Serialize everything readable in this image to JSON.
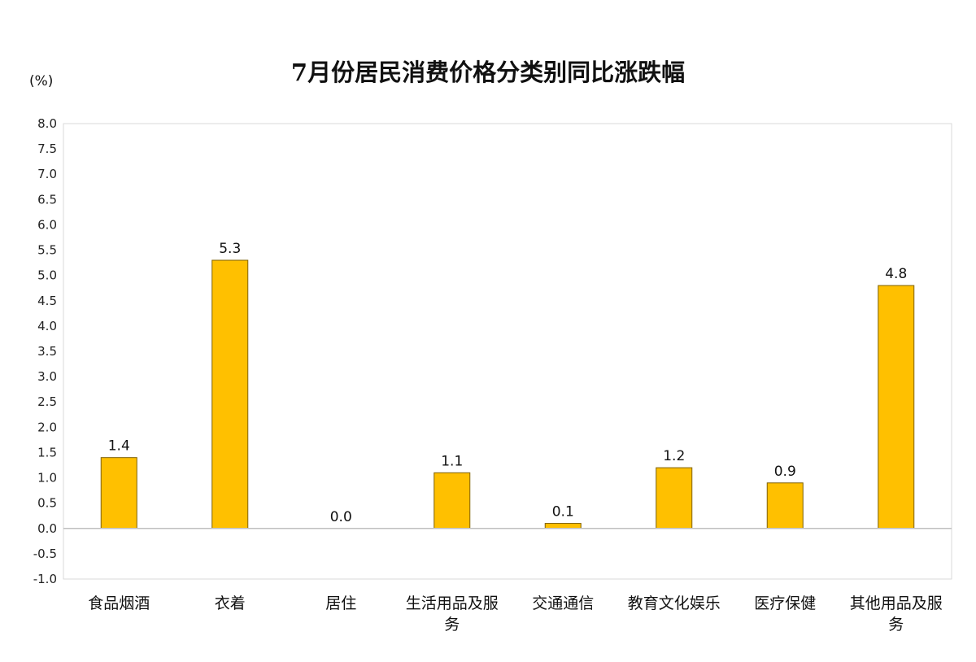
{
  "chart_data": {
    "type": "bar",
    "title": "7月份居民消费价格分类别同比涨跌幅",
    "ylabel": "(%)",
    "xlabel": "",
    "categories": [
      "食品烟酒",
      "衣着",
      "居住",
      "生活用品及服务",
      "交通通信",
      "教育文化娱乐",
      "医疗保健",
      "其他用品及服务"
    ],
    "values": [
      1.4,
      5.3,
      0.0,
      1.1,
      0.1,
      1.2,
      0.9,
      4.8
    ],
    "data_labels": [
      "1.4",
      "5.3",
      "0.0",
      "1.1",
      "0.1",
      "1.2",
      "0.9",
      "4.8"
    ],
    "ylim": [
      -1.0,
      8.0
    ],
    "yticks": [
      "8.0",
      "7.5",
      "7.0",
      "6.5",
      "6.0",
      "5.5",
      "5.0",
      "4.5",
      "4.0",
      "3.5",
      "3.0",
      "2.5",
      "2.0",
      "1.5",
      "1.0",
      "0.5",
      "0.0",
      "-0.5",
      "-1.0"
    ],
    "grid": false,
    "legend": "none",
    "bar_color": "#FFC000",
    "bar_edge_color": "#7F6000"
  }
}
